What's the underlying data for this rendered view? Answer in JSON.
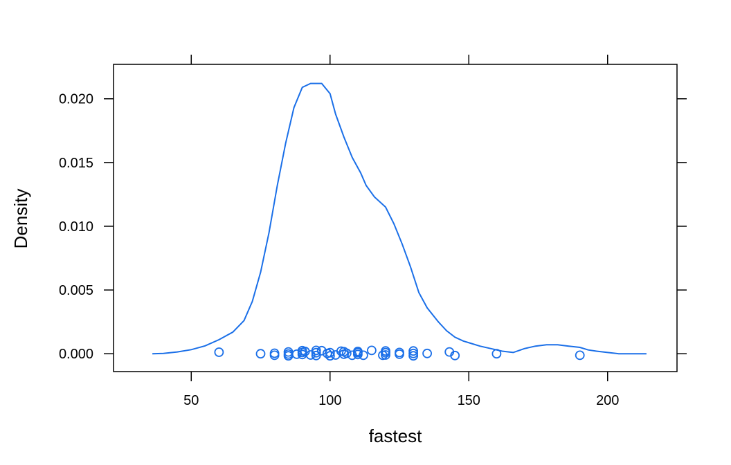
{
  "chart_data": {
    "type": "line",
    "title": "",
    "xlabel": "fastest",
    "ylabel": "Density",
    "xlim": [
      22,
      225
    ],
    "ylim": [
      -0.0014,
      0.0227
    ],
    "x_ticks": [
      50,
      100,
      150,
      200
    ],
    "x_tick_labels": [
      "50",
      "100",
      "150",
      "200"
    ],
    "y_ticks": [
      0.0,
      0.005,
      0.01,
      0.015,
      0.02
    ],
    "y_tick_labels": [
      "0.000",
      "0.005",
      "0.010",
      "0.015",
      "0.020"
    ],
    "grid": false,
    "legend": "none",
    "colors": {
      "series": "#1a6fe8",
      "axis": "#000000"
    },
    "series": [
      {
        "type": "density-line",
        "x": [
          36,
          40,
          45,
          50,
          55,
          60,
          65,
          69,
          72,
          75,
          78,
          81,
          84,
          87,
          90,
          93,
          97,
          100,
          102,
          105,
          108,
          111,
          113,
          116,
          120,
          123,
          126,
          129,
          132,
          135,
          139,
          142,
          145,
          148,
          151,
          154,
          158,
          162,
          166,
          170,
          174,
          178,
          182,
          186,
          190,
          193,
          196,
          200,
          204,
          208,
          214
        ],
        "y": [
          0.0,
          3e-05,
          0.00014,
          0.00032,
          0.00062,
          0.0011,
          0.0017,
          0.0026,
          0.0041,
          0.0064,
          0.0095,
          0.0132,
          0.0165,
          0.0193,
          0.0209,
          0.0212,
          0.0212,
          0.0204,
          0.0188,
          0.017,
          0.0154,
          0.0142,
          0.0132,
          0.0123,
          0.0115,
          0.0102,
          0.0086,
          0.0068,
          0.0048,
          0.0036,
          0.0025,
          0.0018,
          0.0013,
          0.001,
          0.0008,
          0.0006,
          0.0004,
          0.0002,
          0.0001,
          0.0004,
          0.0006,
          0.0007,
          0.0007,
          0.0006,
          0.0005,
          0.0003,
          0.0002,
          0.0001,
          0.0,
          0.0,
          0.0
        ]
      },
      {
        "type": "rug-points",
        "x": [
          60,
          75,
          80,
          80,
          85,
          85,
          85,
          88,
          90,
          90,
          90,
          91,
          93,
          95,
          95,
          95,
          97,
          99,
          100,
          100,
          102,
          104,
          105,
          105,
          106,
          108,
          110,
          110,
          110,
          112,
          115,
          119,
          120,
          120,
          120,
          125,
          125,
          130,
          130,
          130,
          135,
          143,
          145,
          160,
          190
        ],
        "y": [
          0.00012,
          0.0,
          -0.00012,
          4e-05,
          0.00014,
          -2e-05,
          -0.00016,
          -4e-05,
          0.0001,
          0.00024,
          -6e-05,
          0.00018,
          -0.0001,
          0.00026,
          8e-05,
          -0.00014,
          0.00024,
          2e-05,
          -0.00016,
          8e-05,
          -0.0001,
          0.0002,
          -4e-05,
          0.00016,
          4e-05,
          -0.00012,
          0.00018,
          -6e-05,
          8e-05,
          -0.00012,
          0.00026,
          -0.00012,
          0.00022,
          8e-05,
          -0.0001,
          0.0001,
          -4e-05,
          0.00022,
          2e-05,
          -0.00016,
          2e-05,
          0.00014,
          -0.00014,
          0.0,
          -0.00012
        ]
      }
    ]
  }
}
